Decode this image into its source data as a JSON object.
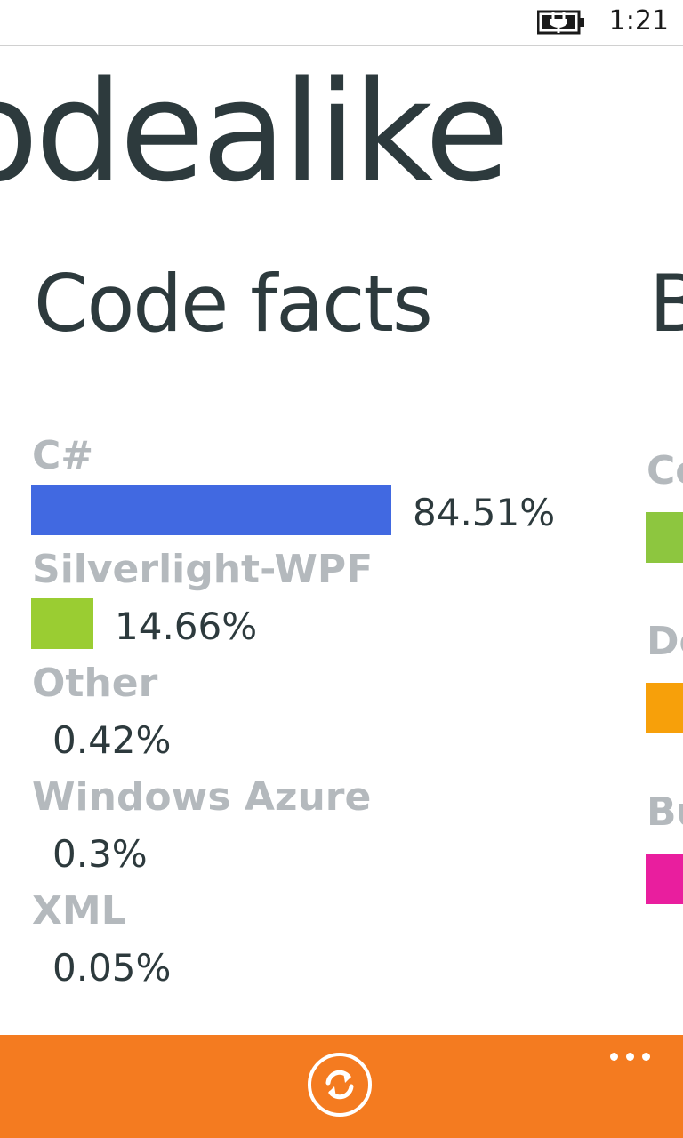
{
  "status_bar": {
    "time": "1:21",
    "battery_icon": "battery-charging-icon"
  },
  "app": {
    "title": "odealike"
  },
  "pivot": {
    "current_header": "Code facts",
    "next_header": "B"
  },
  "code_facts": {
    "bar_max_percent": 84.51,
    "languages": [
      {
        "label": "C#",
        "percent_text": "84.51%",
        "percent": 84.51,
        "color": "#4169e1"
      },
      {
        "label": "Silverlight-WPF",
        "percent_text": "14.66%",
        "percent": 14.66,
        "color": "#9acd32"
      },
      {
        "label": "Other",
        "percent_text": "0.42%",
        "percent": 0.42,
        "color": "#9acd32"
      },
      {
        "label": "Windows Azure",
        "percent_text": "0.3%",
        "percent": 0.3,
        "color": "#9acd32"
      },
      {
        "label": "XML",
        "percent_text": "0.05%",
        "percent": 0.05,
        "color": "#9acd32"
      }
    ]
  },
  "next_panel_peek": {
    "items": [
      {
        "label": "Co",
        "color": "#8dc63f"
      },
      {
        "label": "De",
        "color": "#f7a00a"
      },
      {
        "label": "Bu",
        "color": "#e91e9e"
      }
    ]
  },
  "app_bar": {
    "background": "#f47b20",
    "refresh_icon": "refresh-icon",
    "more_icon": "ellipsis-icon"
  }
}
